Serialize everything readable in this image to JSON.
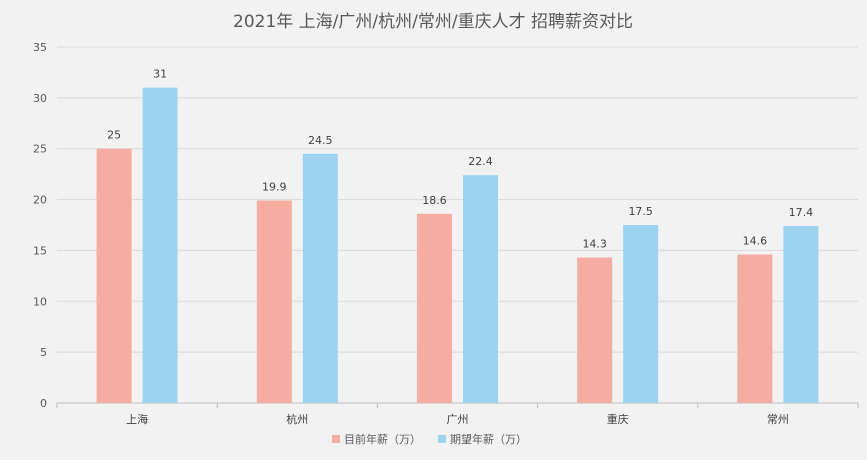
{
  "chart_data": {
    "type": "bar",
    "title": "2021年 上海/广州/杭州/常州/重庆人才 招聘薪资对比",
    "xlabel": "",
    "ylabel": "",
    "categories": [
      "上海",
      "杭州",
      "广州",
      "重庆",
      "常州"
    ],
    "series": [
      {
        "name": "目前年薪（万）",
        "values": [
          25,
          19.9,
          18.6,
          14.3,
          14.6
        ],
        "color": "#f4ada0"
      },
      {
        "name": "期望年薪（万）",
        "values": [
          31,
          24.5,
          22.4,
          17.5,
          17.4
        ],
        "color": "#9dd3f0"
      }
    ],
    "ylim": [
      0,
      35
    ],
    "yticks": [
      0,
      5,
      10,
      15,
      20,
      25,
      30,
      35
    ],
    "grid": true,
    "legend_position": "bottom",
    "data_labels": true
  }
}
